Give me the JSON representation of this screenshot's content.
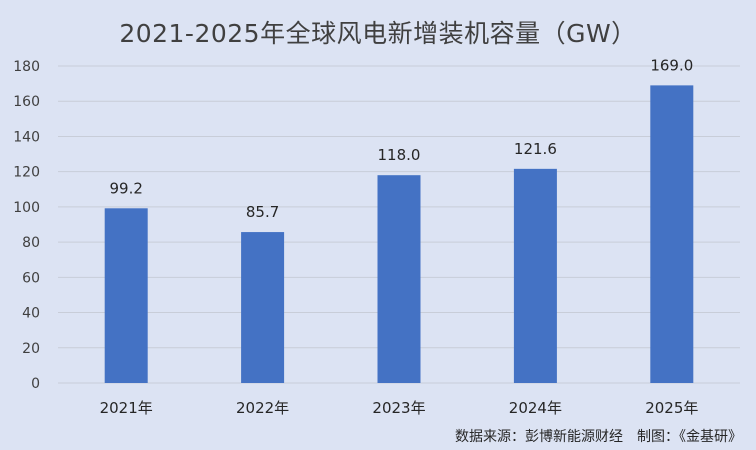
{
  "chart_data": {
    "type": "bar",
    "title": "2021-2025年全球风电新增装机容量（GW）",
    "categories": [
      "2021年",
      "2022年",
      "2023年",
      "2024年",
      "2025年"
    ],
    "series": [
      {
        "values": [
          99.2,
          85.7,
          118.0,
          121.6,
          169.0
        ]
      }
    ],
    "data_labels": [
      "99.2",
      "85.7",
      "118.0",
      "121.6",
      "169.0"
    ],
    "ylim": [
      0,
      180
    ],
    "yticks": [
      0,
      20,
      40,
      60,
      80,
      100,
      120,
      140,
      160,
      180
    ],
    "grid": true,
    "legend": "none",
    "bar_color": "#4472c4"
  },
  "source_note": "数据来源：彭博新能源财经　制图：《金基研》"
}
